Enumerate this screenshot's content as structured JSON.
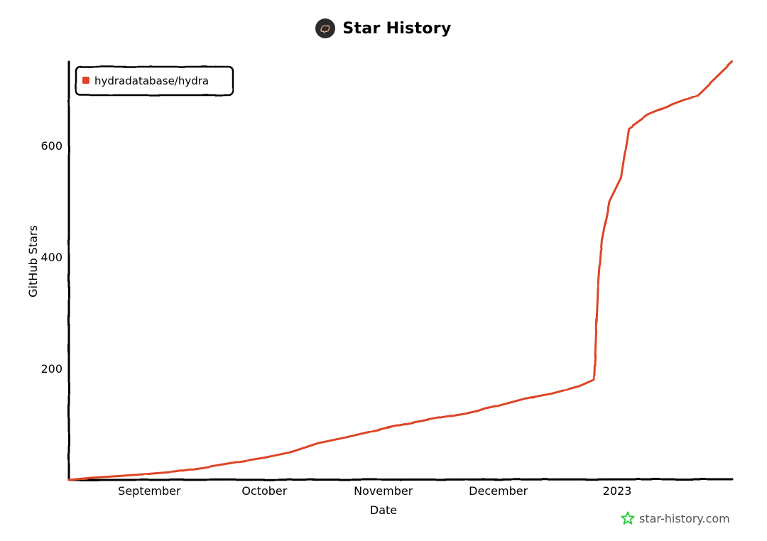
{
  "header": {
    "title": "Star History"
  },
  "footer": {
    "brand": "star-history.com"
  },
  "colors": {
    "series": "#dd4528",
    "axis": "#000000",
    "brand_icon": "#2ecc40"
  },
  "chart_data": {
    "type": "line",
    "xlabel": "Date",
    "ylabel": "GitHub Stars",
    "x_ticks": [
      "September",
      "October",
      "November",
      "December",
      "2023"
    ],
    "y_ticks": [
      200,
      400,
      600
    ],
    "ylim": [
      0,
      750
    ],
    "xlim": [
      "2022-08-11",
      "2023-01-31"
    ],
    "legend": {
      "position": "top-left"
    },
    "series": [
      {
        "name": "hydradatabase/hydra",
        "points": [
          [
            "2022-08-11",
            0
          ],
          [
            "2022-08-17",
            4
          ],
          [
            "2022-08-24",
            7
          ],
          [
            "2022-09-01",
            11
          ],
          [
            "2022-09-08",
            15
          ],
          [
            "2022-09-15",
            22
          ],
          [
            "2022-09-22",
            30
          ],
          [
            "2022-10-01",
            40
          ],
          [
            "2022-10-08",
            50
          ],
          [
            "2022-10-15",
            66
          ],
          [
            "2022-10-22",
            76
          ],
          [
            "2022-11-01",
            92
          ],
          [
            "2022-11-08",
            102
          ],
          [
            "2022-11-15",
            111
          ],
          [
            "2022-11-22",
            119
          ],
          [
            "2022-12-01",
            133
          ],
          [
            "2022-12-08",
            146
          ],
          [
            "2022-12-15",
            155
          ],
          [
            "2022-12-22",
            168
          ],
          [
            "2022-12-26",
            180
          ],
          [
            "2022-12-27",
            340
          ],
          [
            "2022-12-28",
            430
          ],
          [
            "2022-12-30",
            500
          ],
          [
            "2023-01-02",
            542
          ],
          [
            "2023-01-04",
            630
          ],
          [
            "2023-01-09",
            655
          ],
          [
            "2023-01-15",
            672
          ],
          [
            "2023-01-22",
            690
          ],
          [
            "2023-01-31",
            750
          ]
        ]
      }
    ]
  }
}
